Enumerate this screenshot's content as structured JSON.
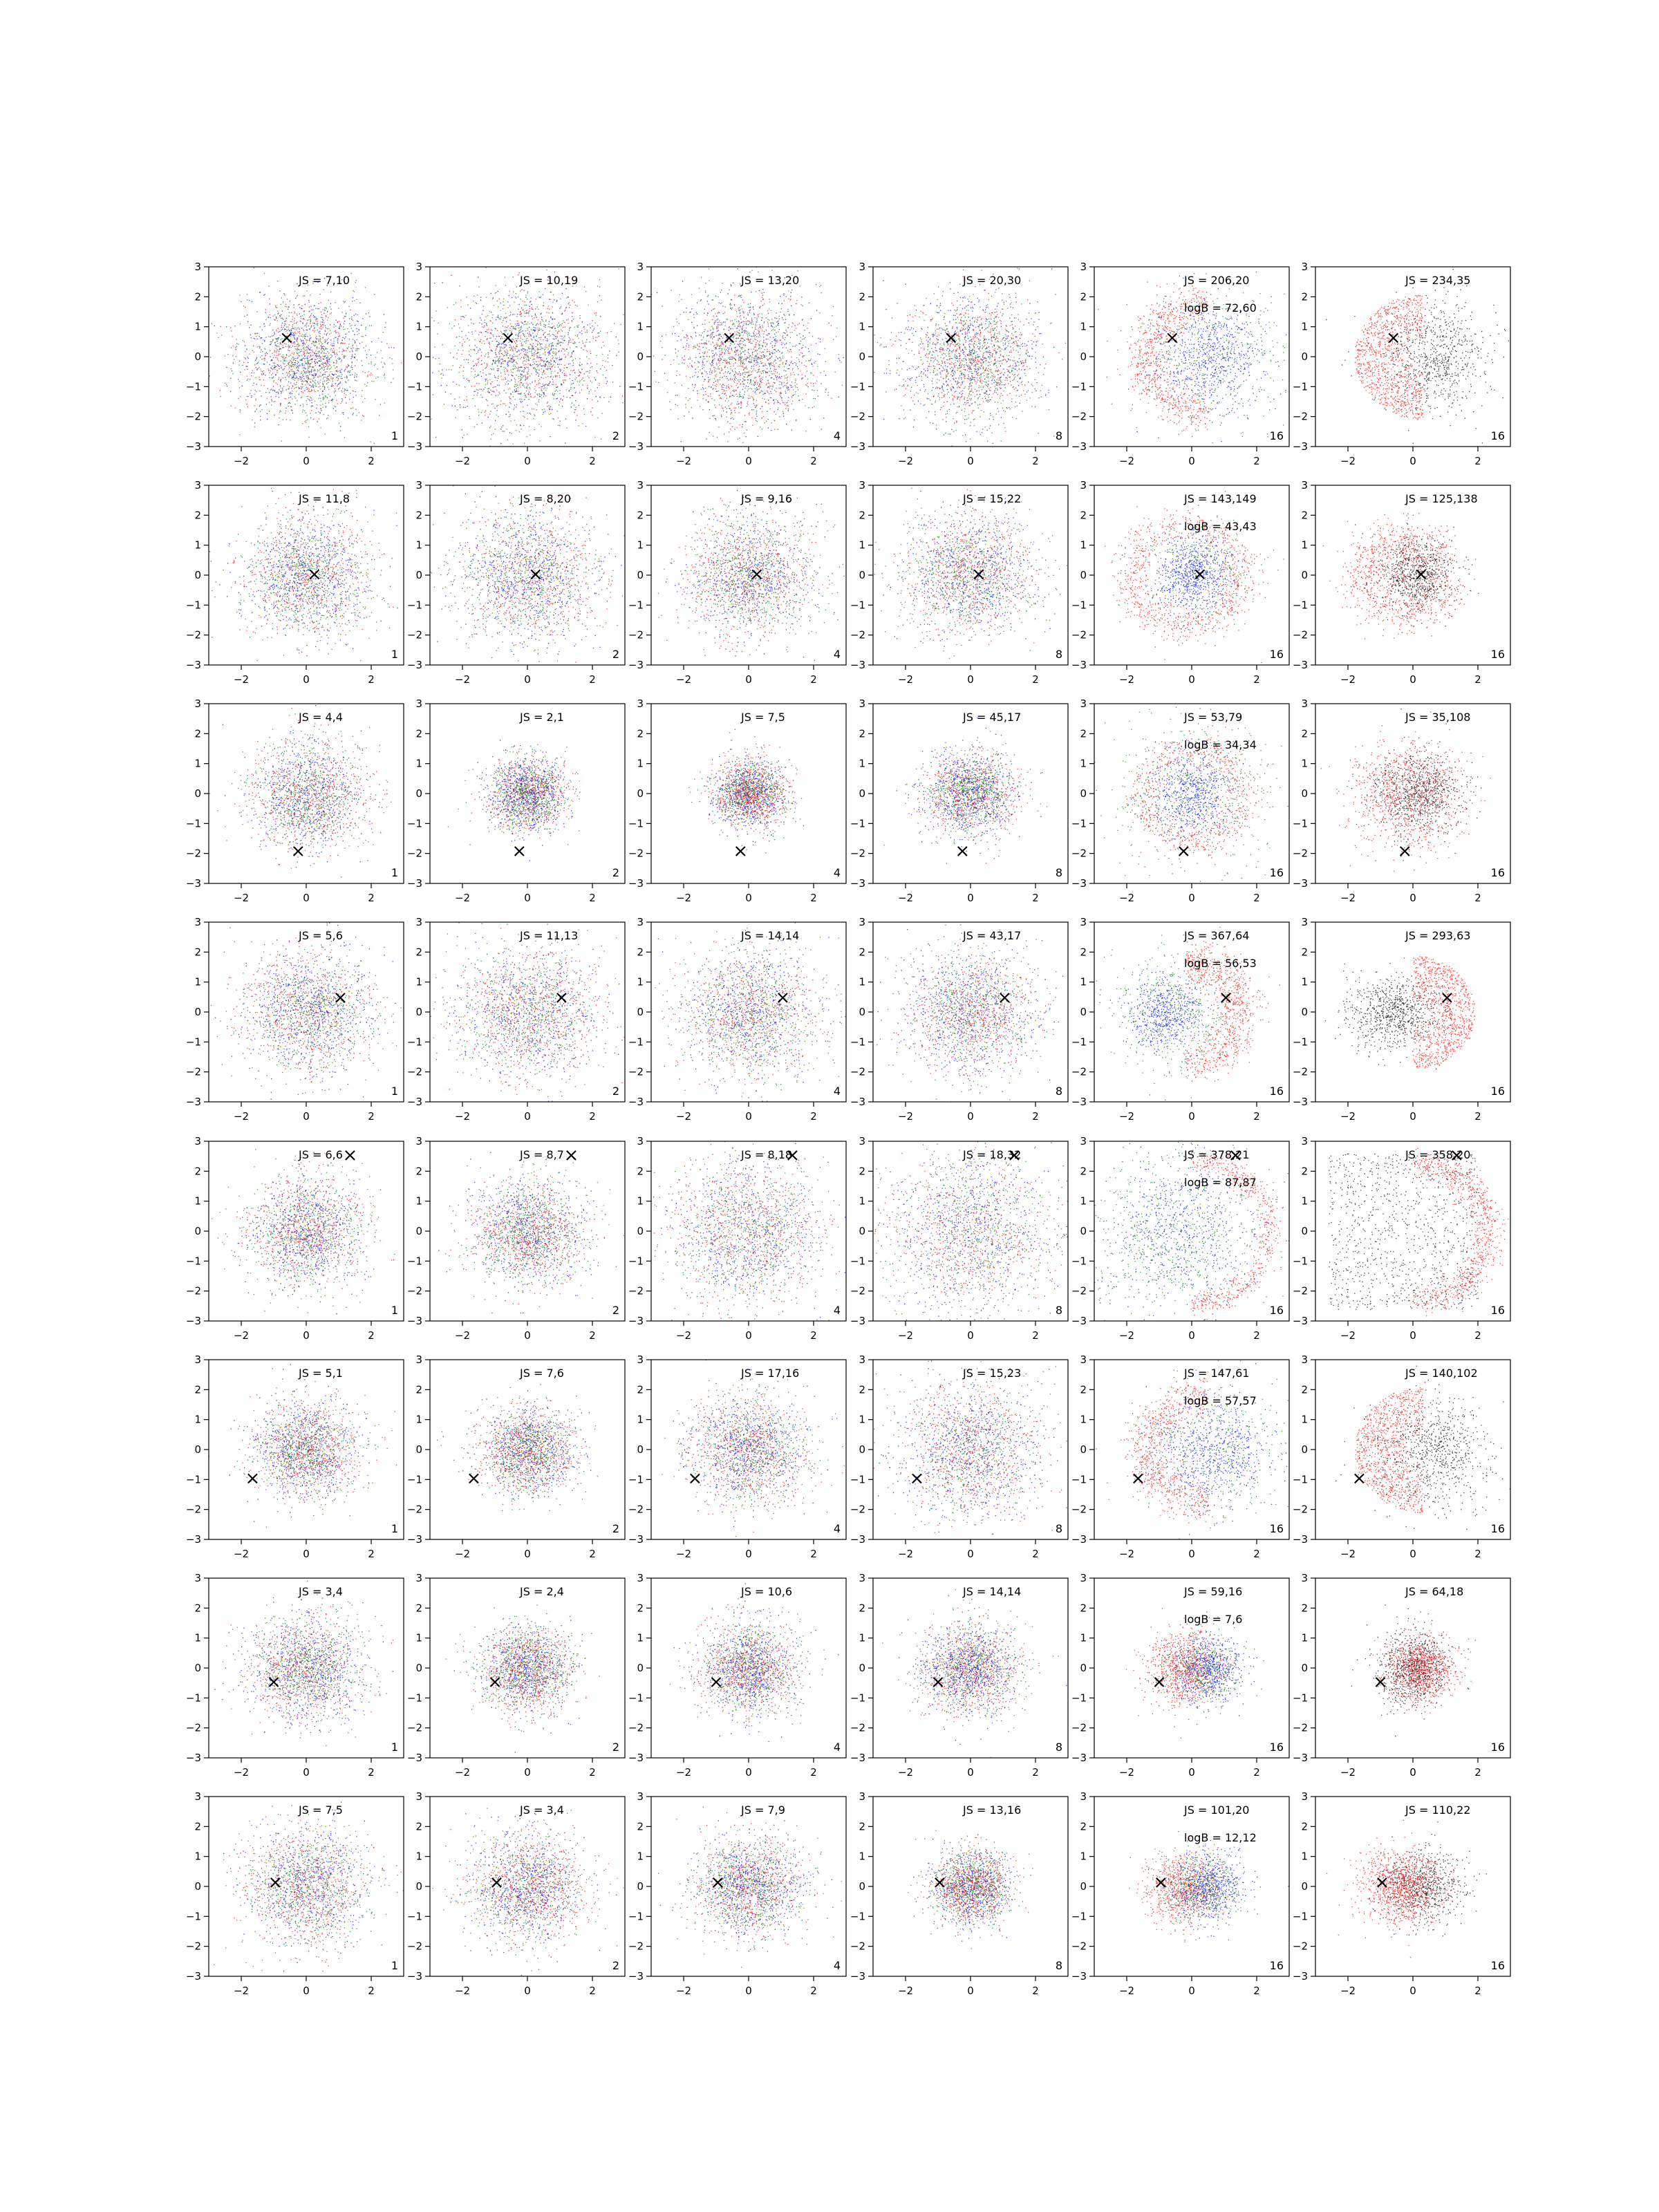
{
  "figure": {
    "title": "",
    "rows": 8,
    "columns": 6
  },
  "chart_data": {
    "type": "scatter",
    "xlim": [
      -3,
      3
    ],
    "ylim": [
      -3,
      3
    ],
    "xticks": [
      "−2",
      "0",
      "2"
    ],
    "yticks": [
      "−3",
      "−2",
      "−1",
      "0",
      "1",
      "2",
      "3"
    ],
    "grid": false,
    "legend": "none",
    "marker_symbol": "×",
    "point_colors": [
      "#ff0000",
      "#008000",
      "#0000ff",
      "#000000"
    ],
    "panel_labels_by_column": [
      "1",
      "2",
      "4",
      "8",
      "16",
      "16"
    ],
    "rows": [
      {
        "marker": [
          -0.6,
          0.65
        ],
        "js": [
          "JS = 7,10",
          "JS = 10,19",
          "JS = 13,20",
          "JS = 20,30",
          "JS = 206,20",
          "JS = 234,35"
        ],
        "logb": "logB = 72,60"
      },
      {
        "marker": [
          0.25,
          0.05
        ],
        "js": [
          "JS = 11,8",
          "JS = 8,20",
          "JS = 9,16",
          "JS = 15,22",
          "JS = 143,149",
          "JS = 125,138"
        ],
        "logb": "logB = 43,43"
      },
      {
        "marker": [
          -0.25,
          -1.9
        ],
        "js": [
          "JS = 4,4",
          "JS = 2,1",
          "JS = 7,5",
          "JS = 45,17",
          "JS = 53,79",
          "JS = 35,108"
        ],
        "logb": "logB = 34,34"
      },
      {
        "marker": [
          1.05,
          0.5
        ],
        "js": [
          "JS = 5,6",
          "JS = 11,13",
          "JS = 14,14",
          "JS = 43,17",
          "JS = 367,64",
          "JS = 293,63"
        ],
        "logb": "logB = 56,53"
      },
      {
        "marker": [
          1.35,
          2.55
        ],
        "js": [
          "JS = 6,6",
          "JS = 8,7",
          "JS = 8,18",
          "JS = 18,32",
          "JS = 378,21",
          "JS = 358,20"
        ],
        "logb": "logB = 87,87"
      },
      {
        "marker": [
          -1.65,
          -0.95
        ],
        "js": [
          "JS = 5,1",
          "JS = 7,6",
          "JS = 17,16",
          "JS = 15,23",
          "JS = 147,61",
          "JS = 140,102"
        ],
        "logb": "logB = 57,57"
      },
      {
        "marker": [
          -1.0,
          -0.45
        ],
        "js": [
          "JS = 3,4",
          "JS = 2,4",
          "JS = 10,6",
          "JS = 14,14",
          "JS = 59,16",
          "JS = 64,18"
        ],
        "logb": "logB = 7,6"
      },
      {
        "marker": [
          -0.95,
          0.15
        ],
        "js": [
          "JS = 7,5",
          "JS = 3,4",
          "JS = 7,9",
          "JS = 13,16",
          "JS = 101,20",
          "JS = 110,22"
        ],
        "logb": "logB = 12,12"
      }
    ]
  }
}
